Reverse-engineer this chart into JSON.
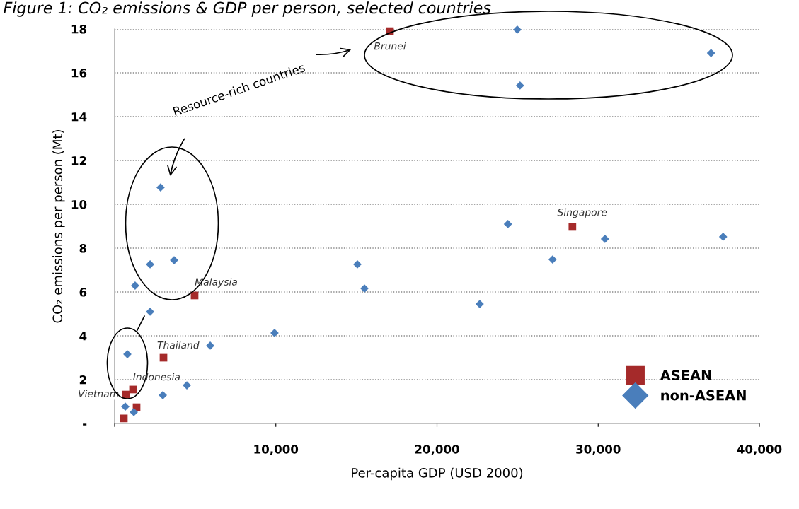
{
  "chart_data": {
    "type": "scatter",
    "title": "Figure 1: CO₂ emissions & GDP per person, selected countries",
    "xlabel": "Per-capita GDP (USD 2000)",
    "ylabel": "CO₂ emissions per person (Mt)",
    "xlim": [
      0,
      40000
    ],
    "xticks": [
      {
        "value": 0,
        "label": null
      },
      {
        "value": 10000,
        "label": "10,000"
      },
      {
        "value": 20000,
        "label": "20,000"
      },
      {
        "value": 30000,
        "label": "30,000"
      },
      {
        "value": 40000,
        "label": "40,000"
      }
    ],
    "ylim": [
      0,
      18
    ],
    "yticks": [
      {
        "value": 0,
        "label": "-"
      },
      2,
      4,
      6,
      8,
      10,
      12,
      14,
      16,
      18
    ],
    "grid": "y",
    "legend": "bottom right",
    "series": [
      {
        "name": "ASEAN",
        "color": "#a52a2a",
        "marker": "square",
        "x": [
          17080,
          28400,
          4960,
          3030,
          1140,
          700,
          1360,
          570
        ],
        "values": [
          17.9,
          8.97,
          5.84,
          3.0,
          1.55,
          1.32,
          0.74,
          0.23
        ]
      },
      {
        "name": "non-ASEAN",
        "color": "#4a7ebb",
        "marker": "diamond",
        "x": [
          2850,
          2200,
          3690,
          1270,
          2200,
          790,
          660,
          1190,
          2990,
          4480,
          5930,
          9920,
          15060,
          15500,
          22650,
          27170,
          24400,
          30420,
          37750,
          24980,
          25150,
          37000
        ],
        "values": [
          10.77,
          7.26,
          7.45,
          6.29,
          5.1,
          3.16,
          0.77,
          0.52,
          1.29,
          1.74,
          3.55,
          4.13,
          7.26,
          6.16,
          5.45,
          7.48,
          9.1,
          8.42,
          8.52,
          17.97,
          15.42,
          16.9
        ]
      }
    ],
    "annotations": [
      {
        "text": "Brunei",
        "x": 17080,
        "y": 17.9
      },
      {
        "text": "Singapore",
        "x": 28400,
        "y": 8.97
      },
      {
        "text": "Malaysia",
        "x": 4960,
        "y": 5.84
      },
      {
        "text": "Thailand",
        "x": 3030,
        "y": 3.0
      },
      {
        "text": "Indonesia",
        "x": 1140,
        "y": 1.55
      },
      {
        "text": "Vietnam",
        "x": 700,
        "y": 1.32
      },
      "Resource-rich countries"
    ]
  }
}
